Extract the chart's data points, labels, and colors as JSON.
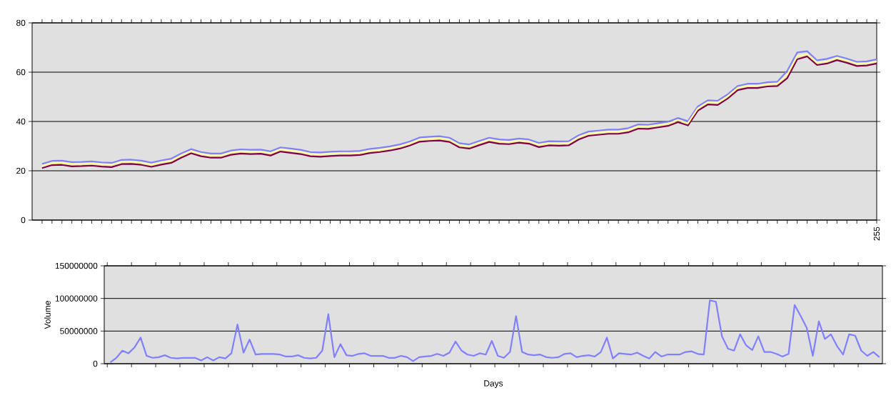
{
  "chart_data": [
    {
      "type": "line",
      "categories": [
        null,
        null,
        null,
        null,
        null,
        null,
        null,
        null,
        null,
        null,
        null,
        null,
        null,
        null,
        null,
        null,
        null,
        null,
        null,
        null,
        null,
        null,
        null,
        null,
        null,
        null,
        null,
        null,
        null,
        null,
        null,
        null,
        null,
        null,
        null,
        null,
        null,
        null,
        null,
        null,
        null,
        null,
        null,
        null,
        null,
        null,
        null,
        null,
        null,
        null,
        null,
        null,
        null,
        null,
        null,
        null,
        null,
        null,
        null,
        null,
        null,
        null,
        null,
        null,
        null,
        null,
        null,
        null,
        null,
        null,
        null,
        null,
        null,
        null,
        null,
        null,
        null,
        null,
        null,
        null,
        null,
        null,
        null,
        null,
        "255"
      ],
      "series": [
        {
          "color": "#8080ff",
          "values": [
            22.8,
            24.0,
            24.1,
            23.5,
            23.6,
            23.8,
            23.4,
            23.2,
            24.4,
            24.5,
            24.1,
            23.3,
            24.2,
            24.9,
            27.0,
            28.8,
            27.6,
            27.0,
            27.0,
            28.2,
            28.7,
            28.5,
            28.6,
            27.9,
            29.5,
            29.0,
            28.5,
            27.6,
            27.4,
            27.7,
            27.9,
            27.9,
            28.1,
            28.9,
            29.3,
            29.9,
            30.7,
            31.9,
            33.5,
            33.8,
            34.0,
            33.4,
            31.2,
            30.7,
            32.1,
            33.4,
            32.7,
            32.5,
            33.1,
            32.7,
            31.3,
            32.0,
            31.9,
            32.0,
            34.4,
            35.9,
            36.3,
            36.7,
            36.7,
            37.3,
            38.8,
            38.7,
            39.3,
            39.9,
            41.4,
            40.1,
            46.1,
            48.6,
            48.4,
            51.0,
            54.4,
            55.3,
            55.3,
            55.9,
            56.1,
            60.6,
            68.0,
            68.5,
            64.8,
            65.4,
            66.6,
            65.5,
            64.2,
            64.4,
            65.2
          ]
        },
        {
          "color": "#800040",
          "values": [
            21.1,
            22.3,
            22.4,
            21.8,
            21.9,
            22.1,
            21.7,
            21.5,
            22.7,
            22.8,
            22.4,
            21.6,
            22.5,
            23.2,
            25.3,
            27.1,
            25.9,
            25.3,
            25.3,
            26.5,
            27.0,
            26.8,
            26.9,
            26.2,
            27.8,
            27.3,
            26.8,
            25.9,
            25.7,
            26.0,
            26.2,
            26.2,
            26.4,
            27.2,
            27.6,
            28.2,
            29.0,
            30.2,
            31.8,
            32.1,
            32.3,
            31.7,
            29.5,
            29.0,
            30.4,
            31.7,
            31.0,
            30.8,
            31.4,
            31.0,
            29.6,
            30.3,
            30.2,
            30.3,
            32.7,
            34.2,
            34.6,
            35.0,
            35.0,
            35.6,
            37.1,
            37.0,
            37.6,
            38.2,
            39.7,
            38.4,
            44.4,
            46.9,
            46.7,
            49.3,
            52.7,
            53.6,
            53.6,
            54.2,
            54.4,
            57.6,
            65.2,
            66.4,
            62.9,
            63.5,
            64.9,
            63.8,
            62.5,
            62.7,
            63.5
          ]
        },
        {
          "color": "#ffff99",
          "values": [
            22.0,
            23.2,
            23.3,
            22.7,
            22.8,
            23.0,
            22.6,
            22.4,
            23.6,
            23.7,
            23.3,
            22.5,
            23.4,
            24.1,
            26.2,
            28.0,
            26.8,
            26.2,
            26.2,
            27.4,
            27.9,
            27.7,
            27.8,
            27.1,
            28.7,
            28.2,
            27.7,
            26.8,
            26.6,
            26.9,
            27.1,
            27.1,
            27.3,
            28.1,
            28.5,
            29.1,
            29.9,
            31.1,
            32.7,
            33.0,
            33.2,
            32.6,
            30.4,
            29.9,
            31.3,
            32.6,
            31.9,
            31.7,
            32.3,
            31.9,
            30.5,
            31.2,
            31.1,
            31.2,
            33.6,
            35.1,
            35.5,
            35.9,
            35.9,
            36.5,
            38.0,
            37.9,
            38.5,
            39.1,
            40.6,
            39.3,
            45.3,
            47.8,
            47.6,
            50.2,
            53.6,
            54.5,
            54.5,
            55.1,
            55.3,
            59.0,
            66.5,
            67.3,
            63.8,
            64.4,
            65.8,
            64.7,
            63.4,
            63.6,
            64.4
          ]
        }
      ],
      "ylim": [
        0,
        80
      ],
      "yticks": [
        0,
        20,
        40,
        60,
        80
      ],
      "grid": "y"
    },
    {
      "type": "line",
      "xlabel": "Days",
      "ylabel": "Volume",
      "color": "#8080ff",
      "categories": [
        null,
        null,
        null,
        null,
        null,
        null,
        null,
        null,
        null,
        null,
        null,
        null,
        null,
        null,
        null,
        null,
        null,
        null,
        null,
        null,
        null,
        null,
        null,
        null,
        null,
        null,
        null,
        null,
        null,
        null,
        null,
        null,
        null,
        null,
        null,
        null,
        null,
        null,
        null,
        null,
        null,
        null,
        null,
        null,
        null,
        null,
        null,
        null,
        null,
        null,
        null,
        null,
        null,
        null,
        null,
        null,
        null,
        null,
        null,
        null,
        null,
        null,
        null,
        null,
        null,
        null,
        null,
        null,
        null,
        null,
        null,
        null,
        null,
        null,
        null,
        null,
        null,
        null,
        null,
        null,
        null,
        null,
        null,
        null,
        null,
        null,
        null,
        null,
        null,
        null,
        null,
        null,
        null,
        null,
        null,
        null,
        null,
        null,
        null,
        null,
        null,
        null,
        null,
        null,
        null,
        null,
        null,
        null,
        null,
        null,
        null,
        null,
        null,
        null,
        null,
        null,
        null,
        null,
        null,
        null,
        null,
        null,
        null,
        null,
        null,
        null,
        null,
        null
      ],
      "values": [
        2000000,
        9000000,
        20000000,
        16000000,
        25000000,
        40000000,
        12000000,
        9000000,
        10000000,
        13000000,
        9000000,
        8000000,
        9000000,
        9000000,
        9000000,
        5000000,
        10000000,
        5000000,
        10000000,
        8000000,
        16000000,
        60000000,
        17000000,
        37000000,
        14000000,
        15000000,
        15000000,
        15000000,
        14000000,
        11000000,
        11000000,
        13000000,
        9000000,
        8000000,
        9000000,
        20000000,
        76000000,
        10000000,
        30000000,
        13000000,
        12000000,
        15000000,
        16000000,
        12000000,
        12000000,
        12000000,
        9000000,
        9000000,
        12000000,
        10000000,
        4000000,
        10000000,
        11000000,
        12000000,
        15000000,
        12000000,
        17000000,
        34000000,
        20000000,
        14000000,
        12000000,
        16000000,
        14000000,
        35000000,
        12000000,
        9000000,
        18000000,
        73000000,
        18000000,
        14000000,
        13000000,
        14000000,
        10000000,
        9000000,
        10000000,
        15000000,
        16000000,
        10000000,
        12000000,
        13000000,
        11000000,
        18000000,
        40000000,
        8000000,
        16000000,
        15000000,
        14000000,
        17000000,
        12000000,
        8000000,
        18000000,
        11000000,
        14000000,
        14000000,
        14000000,
        18000000,
        19000000,
        15000000,
        14000000,
        97000000,
        95000000,
        42000000,
        23000000,
        20000000,
        45000000,
        28000000,
        21000000,
        42000000,
        18000000,
        18000000,
        15000000,
        11000000,
        15000000,
        90000000,
        73000000,
        55000000,
        12000000,
        65000000,
        38000000,
        45000000,
        27000000,
        14000000,
        45000000,
        43000000,
        20000000,
        12000000,
        18000000,
        10000000
      ],
      "ylim": [
        0,
        150000000
      ],
      "yticks": [
        0,
        50000000,
        100000000,
        150000000
      ],
      "grid": "y",
      "tick_labels": "y"
    }
  ]
}
